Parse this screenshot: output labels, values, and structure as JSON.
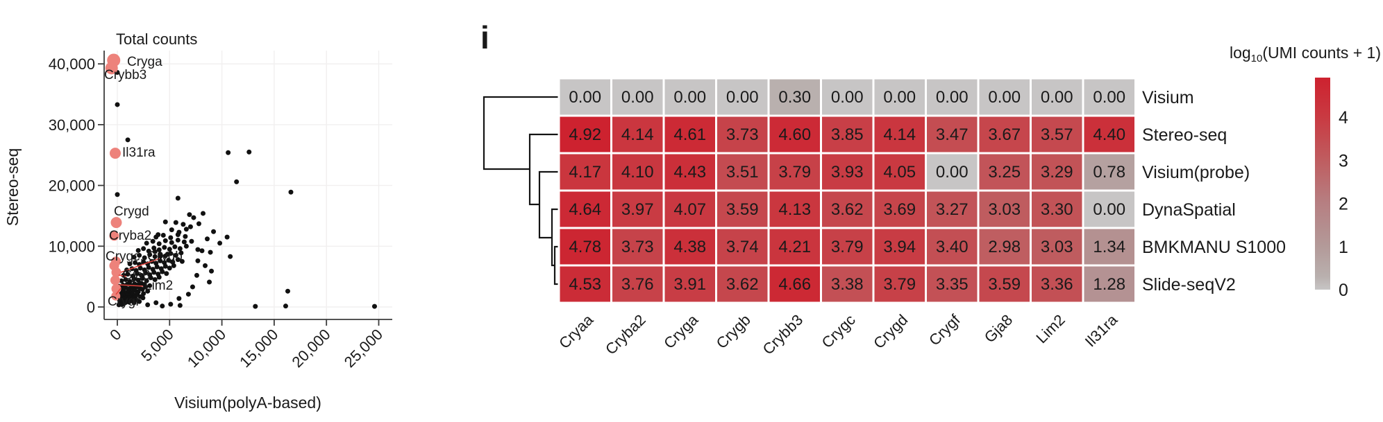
{
  "panel_label": "i",
  "colors": {
    "black_point": "#111111",
    "highlight_dot": "#ed827b",
    "highlight_text": "#e2453e",
    "axis": "#3c3c3c",
    "grid": "#f1efef",
    "dendrogram": "#141414",
    "cell_border": "#ffffff",
    "heat_low": "#c7c5c5",
    "heat_high": "#cd222f"
  },
  "chart_data": [
    {
      "type": "scatter",
      "title": "Total counts",
      "xlabel": "Visium(polyA-based)",
      "ylabel": "Stereo-seq",
      "x_ticks": [
        0,
        5000,
        10000,
        15000,
        20000,
        25000
      ],
      "y_ticks": [
        0,
        10000,
        20000,
        30000,
        40000
      ],
      "xlim": [
        -1300,
        26300
      ],
      "ylim": [
        -2050,
        42200
      ],
      "grid": true,
      "legend_position": "none",
      "points": [
        [
          0,
          38600
        ],
        [
          0,
          33300
        ],
        [
          1000,
          27500
        ],
        [
          10600,
          25400
        ],
        [
          12600,
          25500
        ],
        [
          11400,
          20600
        ],
        [
          16600,
          18900
        ],
        [
          0,
          18500
        ],
        [
          5800,
          17900
        ],
        [
          8200,
          15400
        ],
        [
          7300,
          14700
        ],
        [
          6900,
          15200
        ],
        [
          7800,
          13700
        ],
        [
          4600,
          14000
        ],
        [
          5600,
          13900
        ],
        [
          6300,
          13600
        ],
        [
          6600,
          12800
        ],
        [
          5900,
          12300
        ],
        [
          5200,
          12700
        ],
        [
          7000,
          13200
        ],
        [
          9200,
          12400
        ],
        [
          10500,
          11500
        ],
        [
          9800,
          10500
        ],
        [
          8600,
          11200
        ],
        [
          3700,
          11500
        ],
        [
          4400,
          11800
        ],
        [
          5100,
          11400
        ],
        [
          5800,
          11900
        ],
        [
          6500,
          11600
        ],
        [
          3900,
          11900
        ],
        [
          2800,
          10500
        ],
        [
          3400,
          10800
        ],
        [
          4000,
          10400
        ],
        [
          4600,
          10900
        ],
        [
          5200,
          10600
        ],
        [
          5800,
          11000
        ],
        [
          6400,
          10700
        ],
        [
          7100,
          10800
        ],
        [
          6600,
          10000
        ],
        [
          2000,
          9300
        ],
        [
          2500,
          9600
        ],
        [
          3000,
          9200
        ],
        [
          3500,
          9700
        ],
        [
          4000,
          9400
        ],
        [
          4500,
          9800
        ],
        [
          5000,
          9500
        ],
        [
          5500,
          9900
        ],
        [
          6000,
          9600
        ],
        [
          3600,
          9100
        ],
        [
          7700,
          9450
        ],
        [
          8100,
          9250
        ],
        [
          8900,
          9000
        ],
        [
          1600,
          8200
        ],
        [
          2100,
          8500
        ],
        [
          2600,
          8100
        ],
        [
          3100,
          8600
        ],
        [
          3600,
          8300
        ],
        [
          4100,
          8700
        ],
        [
          4600,
          8400
        ],
        [
          5100,
          8800
        ],
        [
          5600,
          8500
        ],
        [
          6100,
          8900
        ],
        [
          4100,
          8300
        ],
        [
          4800,
          8700
        ],
        [
          10800,
          8300
        ],
        [
          7700,
          7600
        ],
        [
          1200,
          7100
        ],
        [
          1700,
          7300
        ],
        [
          2100,
          7000
        ],
        [
          2500,
          7400
        ],
        [
          2900,
          7100
        ],
        [
          3300,
          7500
        ],
        [
          3700,
          7200
        ],
        [
          4100,
          7600
        ],
        [
          4500,
          7300
        ],
        [
          4900,
          7700
        ],
        [
          5300,
          7400
        ],
        [
          5800,
          7800
        ],
        [
          6200,
          7500
        ],
        [
          8400,
          6800
        ],
        [
          900,
          6100
        ],
        [
          1400,
          6300
        ],
        [
          1800,
          6000
        ],
        [
          2200,
          6400
        ],
        [
          2600,
          6100
        ],
        [
          3000,
          6500
        ],
        [
          3400,
          6200
        ],
        [
          3800,
          6600
        ],
        [
          4200,
          6300
        ],
        [
          4600,
          6700
        ],
        [
          5000,
          6400
        ],
        [
          5400,
          6800
        ],
        [
          9000,
          5900
        ],
        [
          600,
          5200
        ],
        [
          1000,
          5400
        ],
        [
          1500,
          5100
        ],
        [
          1900,
          5500
        ],
        [
          2300,
          5200
        ],
        [
          2700,
          5600
        ],
        [
          3100,
          5300
        ],
        [
          3500,
          5700
        ],
        [
          3900,
          5400
        ],
        [
          4300,
          5800
        ],
        [
          4700,
          5500
        ],
        [
          7600,
          5200
        ],
        [
          400,
          4300
        ],
        [
          800,
          4500
        ],
        [
          1200,
          4200
        ],
        [
          1600,
          4600
        ],
        [
          2000,
          4400
        ],
        [
          2400,
          4700
        ],
        [
          2800,
          4300
        ],
        [
          3200,
          4800
        ],
        [
          3600,
          4500
        ],
        [
          4000,
          4900
        ],
        [
          8800,
          4100
        ],
        [
          550,
          3600
        ],
        [
          950,
          3750
        ],
        [
          1300,
          3550
        ],
        [
          1650,
          3800
        ],
        [
          2000,
          3650
        ],
        [
          2300,
          3900
        ],
        [
          2600,
          3700
        ],
        [
          3100,
          3500
        ],
        [
          7200,
          3300
        ],
        [
          16300,
          2600
        ],
        [
          450,
          3000
        ],
        [
          750,
          3150
        ],
        [
          1050,
          2950
        ],
        [
          1350,
          3200
        ],
        [
          1600,
          3050
        ],
        [
          1850,
          3300
        ],
        [
          2150,
          3100
        ],
        [
          2400,
          2900
        ],
        [
          2700,
          3300
        ],
        [
          2900,
          2600
        ],
        [
          300,
          2400
        ],
        [
          600,
          2550
        ],
        [
          900,
          2350
        ],
        [
          1150,
          2600
        ],
        [
          1400,
          2450
        ],
        [
          1700,
          2700
        ],
        [
          2000,
          2500
        ],
        [
          2500,
          2200
        ],
        [
          6800,
          2100
        ],
        [
          350,
          1800
        ],
        [
          550,
          1950
        ],
        [
          800,
          1750
        ],
        [
          1000,
          2000
        ],
        [
          1200,
          1850
        ],
        [
          1450,
          2100
        ],
        [
          1650,
          1900
        ],
        [
          1900,
          2150
        ],
        [
          2200,
          1700
        ],
        [
          150,
          2100
        ],
        [
          100,
          2900
        ],
        [
          200,
          3400
        ],
        [
          200,
          1200
        ],
        [
          400,
          1400
        ],
        [
          650,
          1250
        ],
        [
          850,
          1450
        ],
        [
          1050,
          1300
        ],
        [
          1250,
          1550
        ],
        [
          1500,
          1350
        ],
        [
          1700,
          1600
        ],
        [
          1800,
          1200
        ],
        [
          2450,
          1500
        ],
        [
          5900,
          1400
        ],
        [
          250,
          800
        ],
        [
          500,
          900
        ],
        [
          750,
          700
        ],
        [
          900,
          950
        ],
        [
          1100,
          800
        ],
        [
          1300,
          1000
        ],
        [
          1600,
          700
        ],
        [
          2100,
          900
        ],
        [
          3700,
          700
        ],
        [
          150,
          350
        ],
        [
          300,
          500
        ],
        [
          450,
          400
        ],
        [
          600,
          600
        ],
        [
          2900,
          350
        ],
        [
          4300,
          150
        ],
        [
          5100,
          450
        ],
        [
          6000,
          250
        ],
        [
          13200,
          100
        ],
        [
          16100,
          150
        ],
        [
          24600,
          100
        ]
      ],
      "highlighted_points": [
        {
          "gene": "Cryga",
          "x": -350,
          "y": 40600,
          "r": 9.5
        },
        {
          "gene": "Crybb3",
          "x": -550,
          "y": 39300,
          "r": 9
        },
        {
          "gene": "Il31ra",
          "x": -200,
          "y": 25300,
          "r": 8
        },
        {
          "gene": "Crygd",
          "x": -100,
          "y": 13900,
          "r": 8
        },
        {
          "gene": "Cryba2",
          "x": -300,
          "y": 11700,
          "r": 7
        },
        {
          "gene": "Crygc",
          "x": -130,
          "y": 7500,
          "r": 7
        },
        {
          "gene": "Crygb",
          "x": -300,
          "y": 6800,
          "r": 7
        },
        {
          "gene": "Gja8",
          "x": -100,
          "y": 5700,
          "r": 7
        },
        {
          "gene": "",
          "x": -200,
          "y": 4400,
          "r": 7
        },
        {
          "gene": "Lim2",
          "x": -100,
          "y": 3000,
          "r": 7
        },
        {
          "gene": "Crygf",
          "x": -150,
          "y": 1800,
          "r": 6.5
        }
      ],
      "gene_labels": [
        "Cryga",
        "Crybb3",
        "Il31ra",
        "Crygd",
        "Cryba2",
        "Crygc, Crygb",
        "Gja8",
        "Lim2",
        "Crygf"
      ]
    },
    {
      "type": "heatmap",
      "legend_log": "log",
      "legend_sub": "10",
      "legend_rest": "(UMI counts + 1)",
      "legend_title": "log10(UMI counts + 1)",
      "columns": [
        "Cryaa",
        "Cryba2",
        "Cryga",
        "Crygb",
        "Crybb3",
        "Crygc",
        "Crygd",
        "Crygf",
        "Gja8",
        "Lim2",
        "Il31ra"
      ],
      "rows": [
        {
          "label": "Visium",
          "values": [
            0.0,
            0.0,
            0.0,
            0.0,
            0.3,
            0.0,
            0.0,
            0.0,
            0.0,
            0.0,
            0.0
          ]
        },
        {
          "label": "Stereo-seq",
          "values": [
            4.92,
            4.14,
            4.61,
            3.73,
            4.6,
            3.85,
            4.14,
            3.47,
            3.67,
            3.57,
            4.4
          ]
        },
        {
          "label": "Visium(probe)",
          "values": [
            4.17,
            4.1,
            4.43,
            3.51,
            3.79,
            3.93,
            4.05,
            0.0,
            3.25,
            3.29,
            0.78
          ]
        },
        {
          "label": "DynaSpatial",
          "values": [
            4.64,
            3.97,
            4.07,
            3.59,
            4.13,
            3.62,
            3.69,
            3.27,
            3.03,
            3.3,
            0.0
          ]
        },
        {
          "label": "BMKMANU S1000",
          "values": [
            4.78,
            3.73,
            4.38,
            3.74,
            4.21,
            3.79,
            3.94,
            3.4,
            2.98,
            3.03,
            1.34
          ]
        },
        {
          "label": "Slide-seqV2",
          "values": [
            4.53,
            3.76,
            3.91,
            3.62,
            4.66,
            3.38,
            3.79,
            3.35,
            3.59,
            3.36,
            1.28
          ]
        }
      ],
      "colorbar_ticks": [
        4,
        3,
        2,
        1,
        0
      ],
      "vmin": 0,
      "vmax": 4.92,
      "color_stops": [
        [
          0,
          "#c7c5c5"
        ],
        [
          0.3,
          "#b9b0ae"
        ],
        [
          1,
          "#b39a99"
        ],
        [
          2,
          "#b67f82"
        ],
        [
          3,
          "#bf5d60"
        ],
        [
          4,
          "#c93a42"
        ],
        [
          4.92,
          "#cd222f"
        ]
      ],
      "dendrogram_order": [
        "Visium",
        [
          "Stereo-seq",
          [
            "Visium(probe)",
            [
              "DynaSpatial",
              [
                "BMKMANU S1000",
                "Slide-seqV2"
              ]
            ]
          ]
        ]
      ]
    }
  ]
}
